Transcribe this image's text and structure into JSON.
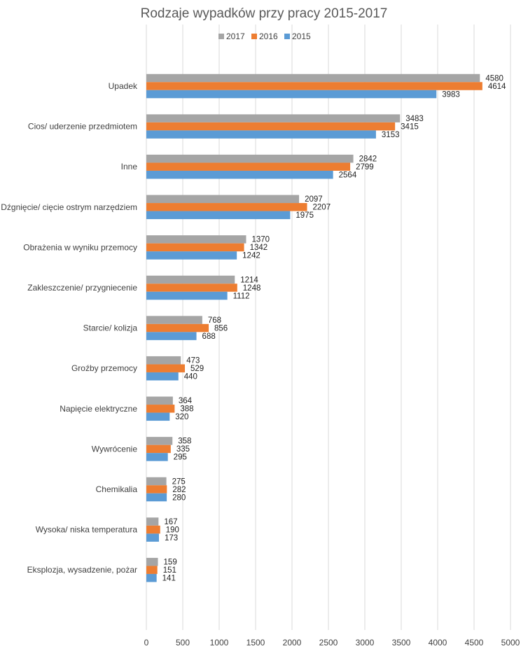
{
  "chart_data": {
    "type": "bar",
    "orientation": "horizontal",
    "title": "Rodzaje wypadków przy pracy 2015-2017",
    "xlabel": "",
    "ylabel": "",
    "xlim": [
      0,
      5000
    ],
    "x_ticks": [
      0,
      500,
      1000,
      1500,
      2000,
      2500,
      3000,
      3500,
      4000,
      4500,
      5000
    ],
    "grid": true,
    "legend_position": "top",
    "categories": [
      "Upadek",
      "Cios/ uderzenie przedmiotem",
      "Inne",
      "Dźgnięcie/ cięcie ostrym narzędziem",
      "Obrażenia w wyniku przemocy",
      "Zakleszczenie/ przygniecenie",
      "Starcie/ kolizja",
      "Groźby przemocy",
      "Napięcie elektryczne",
      "Wywrócenie",
      "Chemikalia",
      "Wysoka/ niska temperatura",
      "Eksplozja, wysadzenie, pożar"
    ],
    "series": [
      {
        "name": "2017",
        "color": "#a5a5a5",
        "values": [
          4580,
          3483,
          2842,
          2097,
          1370,
          1214,
          768,
          473,
          364,
          358,
          275,
          167,
          159
        ]
      },
      {
        "name": "2016",
        "color": "#ed7d31",
        "values": [
          4614,
          3415,
          2799,
          2207,
          1342,
          1248,
          856,
          529,
          388,
          335,
          282,
          190,
          151
        ]
      },
      {
        "name": "2015",
        "color": "#5b9bd5",
        "values": [
          3983,
          3153,
          2564,
          1975,
          1242,
          1112,
          688,
          440,
          320,
          295,
          280,
          173,
          141
        ]
      }
    ]
  }
}
